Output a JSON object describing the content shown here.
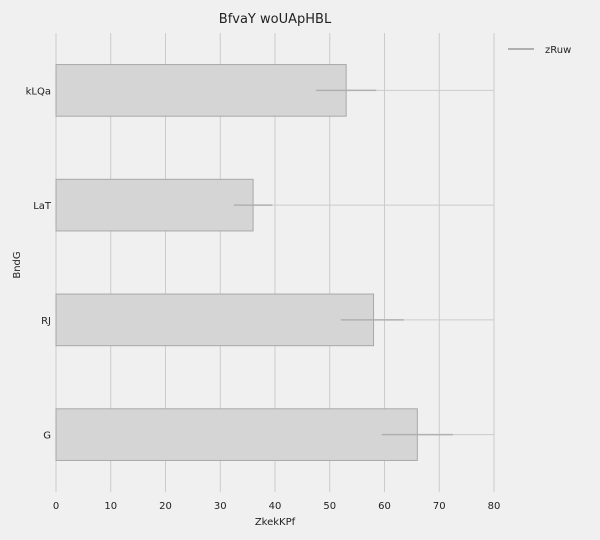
{
  "chart_data": {
    "type": "bar",
    "orientation": "horizontal",
    "title": "BfvaY woUApHBL",
    "xlabel": "ZkekKPf",
    "ylabel": "BndG",
    "categories": [
      "kLQa",
      "LaT",
      "RJ",
      "G"
    ],
    "series": [
      {
        "name": "zRuw",
        "values": [
          53,
          36,
          58,
          66
        ],
        "error_low": [
          47.5,
          32.5,
          52,
          59.5
        ],
        "error_high": [
          58.5,
          39.5,
          63.5,
          72.5
        ]
      }
    ],
    "xlim": [
      0,
      80
    ],
    "xticks": [
      0,
      10,
      20,
      30,
      40,
      50,
      60,
      70,
      80
    ],
    "grid": true,
    "legend_position": "top-right"
  },
  "colors": {
    "background": "#f0f0f0",
    "bar_fill": "#d5d5d5",
    "bar_edge": "#a8a8a8",
    "grid": "#cbcbcb",
    "error_bar": "#b0b0b0"
  }
}
